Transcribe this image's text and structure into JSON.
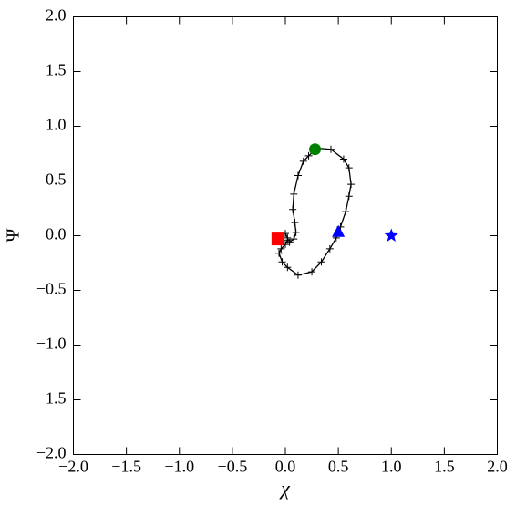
{
  "chart_data": {
    "type": "line",
    "xlabel": "χ",
    "ylabel": "Ψ",
    "xlim": [
      -2,
      2
    ],
    "ylim": [
      -2,
      2
    ],
    "xticks": [
      {
        "value": -2,
        "label": "−2.0"
      },
      {
        "value": -1.5,
        "label": "−1.5"
      },
      {
        "value": -1,
        "label": "−1.0"
      },
      {
        "value": -0.5,
        "label": "−0.5"
      },
      {
        "value": 0,
        "label": "0.0"
      },
      {
        "value": 0.5,
        "label": "0.5"
      },
      {
        "value": 1,
        "label": "1.0"
      },
      {
        "value": 1.5,
        "label": "1.5"
      },
      {
        "value": 2,
        "label": "2.0"
      }
    ],
    "yticks": [
      {
        "value": -2,
        "label": "−2.0"
      },
      {
        "value": -1.5,
        "label": "−1.5"
      },
      {
        "value": -1,
        "label": "−1.0"
      },
      {
        "value": -0.5,
        "label": "−0.5"
      },
      {
        "value": 0,
        "label": "0.0"
      },
      {
        "value": 0.5,
        "label": "0.5"
      },
      {
        "value": 1,
        "label": "1.0"
      },
      {
        "value": 1.5,
        "label": "1.5"
      },
      {
        "value": 2,
        "label": "2.0"
      }
    ],
    "grid": false,
    "series": [
      {
        "color": "#000000",
        "marker": "plus",
        "line": true,
        "x": [
          0.02,
          0.0,
          -0.04,
          -0.06,
          -0.03,
          0.02,
          0.12,
          0.25,
          0.34,
          0.42,
          0.48,
          0.52,
          0.57,
          0.6,
          0.62,
          0.6,
          0.55,
          0.43,
          0.3,
          0.22,
          0.17,
          0.12,
          0.08,
          0.07,
          0.09,
          0.1,
          0.08,
          0.04,
          0.02,
          0.0
        ],
        "values": [
          -0.04,
          -0.08,
          -0.12,
          -0.16,
          -0.24,
          -0.29,
          -0.36,
          -0.33,
          -0.24,
          -0.12,
          -0.02,
          0.08,
          0.22,
          0.36,
          0.47,
          0.62,
          0.7,
          0.79,
          0.8,
          0.73,
          0.68,
          0.55,
          0.38,
          0.24,
          0.12,
          0.03,
          -0.03,
          -0.06,
          -0.02,
          0.02
        ]
      },
      {
        "color": "#008000",
        "marker": "circle",
        "x": [
          0.28
        ],
        "values": [
          0.79
        ]
      },
      {
        "color": "#ff0000",
        "marker": "square",
        "x": [
          -0.07
        ],
        "values": [
          -0.03
        ]
      },
      {
        "color": "#0000ff",
        "marker": "triangle",
        "x": [
          0.5
        ],
        "values": [
          0.04
        ]
      },
      {
        "color": "#0000ff",
        "marker": "star",
        "x": [
          1.0
        ],
        "values": [
          0.0
        ]
      }
    ]
  }
}
